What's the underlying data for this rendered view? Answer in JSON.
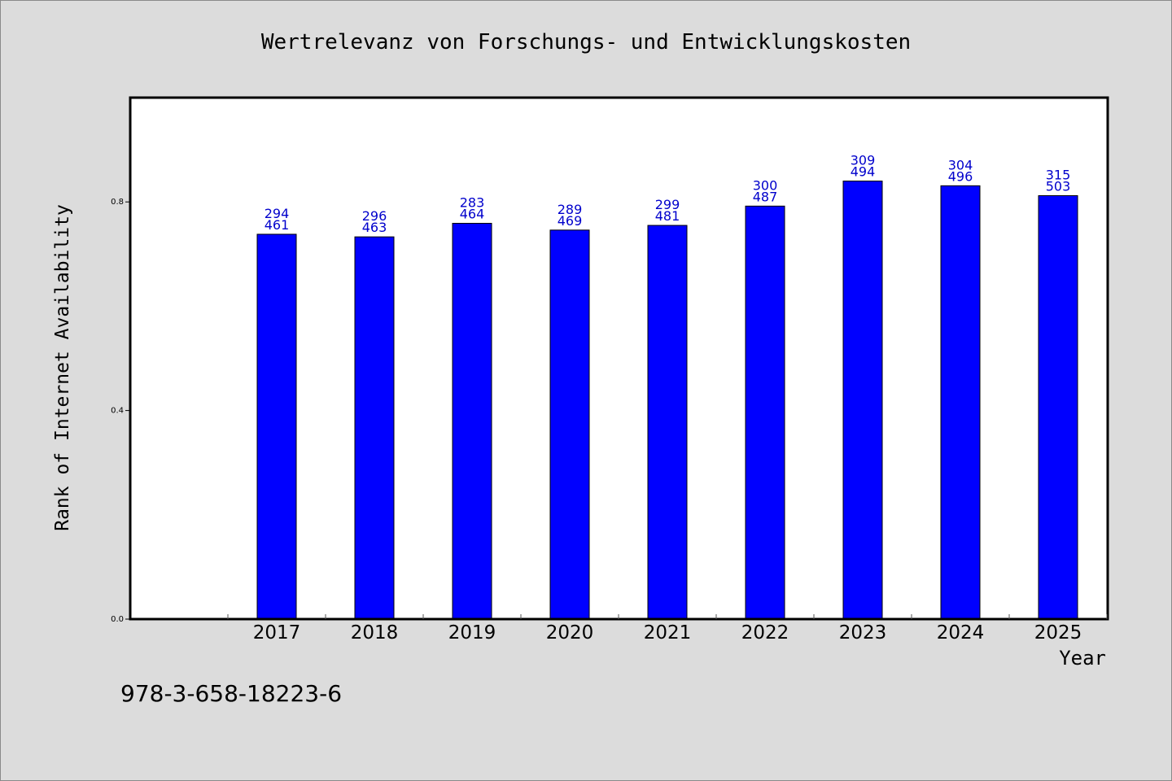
{
  "chart_data": {
    "type": "bar",
    "title": "Wertrelevanz von Forschungs- und Entwicklungskosten",
    "xlabel": "Year",
    "ylabel": "Rank of Internet Availability",
    "categories": [
      "2017",
      "2018",
      "2019",
      "2020",
      "2021",
      "2022",
      "2023",
      "2024",
      "2025"
    ],
    "values": [
      0.738,
      0.733,
      0.759,
      0.746,
      0.755,
      0.792,
      0.84,
      0.831,
      0.812
    ],
    "data_labels_top": [
      "294",
      "296",
      "283",
      "289",
      "299",
      "300",
      "309",
      "304",
      "315"
    ],
    "data_labels_bottom": [
      "461",
      "463",
      "464",
      "469",
      "481",
      "487",
      "494",
      "496",
      "503"
    ],
    "yticks": [
      "0.0",
      "0.4",
      "0.8"
    ],
    "ylim": [
      0,
      1.0
    ],
    "bar_color": "#0000ff",
    "label_color": "#0000cc",
    "grid": false
  },
  "footer_text": "978-3-658-18223-6",
  "colors": {
    "background": "#dcdcdc",
    "plot_background": "#ffffff"
  }
}
